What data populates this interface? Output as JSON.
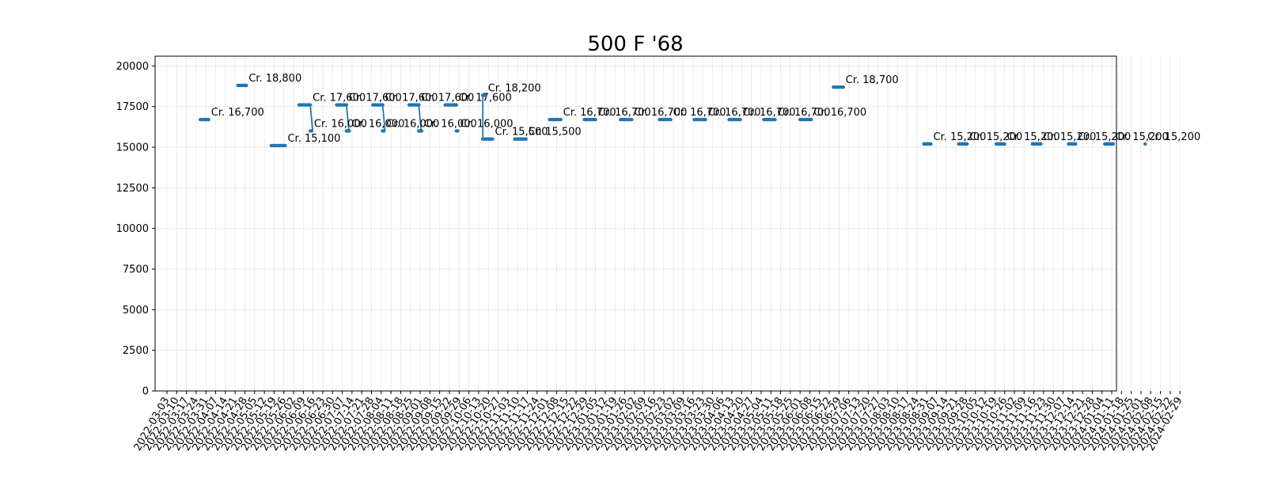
{
  "chart_data": {
    "type": "line",
    "title": "500 F '68",
    "xlabel": "",
    "ylabel": "",
    "ylim": [
      0,
      20600
    ],
    "yticks": [
      0,
      2500,
      5000,
      7500,
      10000,
      12500,
      15000,
      17500,
      20000
    ],
    "grid": true,
    "legend": "none",
    "color": "#1f77b4",
    "x_tick_labels": [
      "2022-03-03",
      "2022-03-10",
      "2022-03-17",
      "2022-03-24",
      "2022-03-31",
      "2022-04-07",
      "2022-04-14",
      "2022-04-21",
      "2022-04-28",
      "2022-05-05",
      "2022-05-12",
      "2022-05-19",
      "2022-05-26",
      "2022-06-02",
      "2022-06-09",
      "2022-06-16",
      "2022-06-23",
      "2022-06-30",
      "2022-07-07",
      "2022-07-14",
      "2022-07-21",
      "2022-07-28",
      "2022-08-04",
      "2022-08-11",
      "2022-08-18",
      "2022-08-25",
      "2022-09-01",
      "2022-09-08",
      "2022-09-15",
      "2022-09-22",
      "2022-09-29",
      "2022-10-06",
      "2022-10-13",
      "2022-10-20",
      "2022-10-27",
      "2022-11-03",
      "2022-11-10",
      "2022-11-17",
      "2022-11-24",
      "2022-12-01",
      "2022-12-08",
      "2022-12-15",
      "2022-12-22",
      "2022-12-29",
      "2023-01-05",
      "2023-01-12",
      "2023-01-19",
      "2023-01-26",
      "2023-02-02",
      "2023-02-09",
      "2023-02-16",
      "2023-02-23",
      "2023-03-02",
      "2023-03-09",
      "2023-03-16",
      "2023-03-23",
      "2023-03-30",
      "2023-04-06",
      "2023-04-13",
      "2023-04-20",
      "2023-04-27",
      "2023-05-04",
      "2023-05-11",
      "2023-05-18",
      "2023-05-25",
      "2023-06-01",
      "2023-06-08",
      "2023-06-15",
      "2023-06-22",
      "2023-06-29",
      "2023-07-06",
      "2023-07-13",
      "2023-07-20",
      "2023-07-27",
      "2023-08-03",
      "2023-08-10",
      "2023-08-17",
      "2023-08-24",
      "2023-08-31",
      "2023-09-07",
      "2023-09-14",
      "2023-09-21",
      "2023-09-28",
      "2023-10-05",
      "2023-10-12",
      "2023-10-19",
      "2023-10-26",
      "2023-11-02",
      "2023-11-09",
      "2023-11-16",
      "2023-11-23",
      "2023-11-30",
      "2023-12-07",
      "2023-12-14",
      "2023-12-21",
      "2023-12-28",
      "2024-01-04",
      "2024-01-11",
      "2024-01-18",
      "2024-01-25",
      "2024-02-01",
      "2024-02-08",
      "2024-02-15",
      "2024-02-22",
      "2024-02-29"
    ],
    "segments": [
      {
        "start": "2022-03-27",
        "end": "2022-04-02",
        "value": 16700,
        "label": "Cr. 16,700"
      },
      {
        "start": "2022-04-23",
        "end": "2022-04-29",
        "value": 18800,
        "label": "Cr. 18,800"
      },
      {
        "start": "2022-05-17",
        "end": "2022-05-27",
        "value": 15100,
        "label": "Cr. 15,100"
      },
      {
        "start": "2022-06-06",
        "end": "2022-06-14",
        "value": 17600,
        "label": "Cr. 17,600"
      },
      {
        "start": "2022-06-14",
        "end": "2022-06-15",
        "value": 16000,
        "label": "Cr. 16,000"
      },
      {
        "start": "2022-07-03",
        "end": "2022-07-10",
        "value": 17600,
        "label": "Cr. 17,600"
      },
      {
        "start": "2022-07-10",
        "end": "2022-07-12",
        "value": 16000,
        "label": "Cr. 16,000"
      },
      {
        "start": "2022-07-29",
        "end": "2022-08-05",
        "value": 17600,
        "label": "Cr. 17,600"
      },
      {
        "start": "2022-08-05",
        "end": "2022-08-06",
        "value": 16000,
        "label": "Cr. 16,000"
      },
      {
        "start": "2022-08-24",
        "end": "2022-08-31",
        "value": 17600,
        "label": "Cr. 17,600"
      },
      {
        "start": "2022-08-31",
        "end": "2022-09-02",
        "value": 16000,
        "label": "Cr. 16,000"
      },
      {
        "start": "2022-09-19",
        "end": "2022-09-27",
        "value": 17600,
        "label": "Cr. 17,600"
      },
      {
        "start": "2022-09-27",
        "end": "2022-09-28",
        "value": 16000,
        "label": "Cr. 16,000"
      },
      {
        "start": "2022-10-16",
        "end": "2022-10-18",
        "value": 18200,
        "label": "Cr. 18,200"
      },
      {
        "start": "2022-10-16",
        "end": "2022-10-23",
        "value": 15500,
        "label": "Cr. 15,500"
      },
      {
        "start": "2022-11-08",
        "end": "2022-11-16",
        "value": 15500,
        "label": "Cr. 15,500"
      },
      {
        "start": "2022-12-03",
        "end": "2022-12-11",
        "value": 16700,
        "label": "Cr. 16,700"
      },
      {
        "start": "2022-12-28",
        "end": "2023-01-05",
        "value": 16700,
        "label": "Cr. 16,700"
      },
      {
        "start": "2023-01-23",
        "end": "2023-01-31",
        "value": 16700,
        "label": "Cr. 16,700"
      },
      {
        "start": "2023-02-20",
        "end": "2023-02-28",
        "value": 16700,
        "label": "Cr. 16,700"
      },
      {
        "start": "2023-03-17",
        "end": "2023-03-25",
        "value": 16700,
        "label": "Cr. 16,700"
      },
      {
        "start": "2023-04-11",
        "end": "2023-04-19",
        "value": 16700,
        "label": "Cr. 16,700"
      },
      {
        "start": "2023-05-06",
        "end": "2023-05-14",
        "value": 16700,
        "label": "Cr. 16,700"
      },
      {
        "start": "2023-06-01",
        "end": "2023-06-09",
        "value": 16700,
        "label": "Cr. 16,700"
      },
      {
        "start": "2023-08-29",
        "end": "2023-09-03",
        "value": 15200,
        "label": "Cr. 15,200"
      },
      {
        "start": "2023-09-23",
        "end": "2023-09-29",
        "value": 15200,
        "label": "Cr. 15,200"
      },
      {
        "start": "2023-10-20",
        "end": "2023-10-26",
        "value": 15200,
        "label": "Cr. 15,200"
      },
      {
        "start": "2023-11-15",
        "end": "2023-11-21",
        "value": 15200,
        "label": "Cr. 15,200"
      },
      {
        "start": "2023-12-11",
        "end": "2023-12-16",
        "value": 15200,
        "label": "Cr. 15,200"
      },
      {
        "start": "2024-01-06",
        "end": "2024-01-12",
        "value": 15200,
        "label": "Cr. 15,200"
      },
      {
        "start": "2024-02-04",
        "end": "2024-02-04",
        "value": 15200,
        "label": "Cr. 15,200"
      },
      {
        "start": "2023-06-25",
        "end": "2023-07-02",
        "value": 18700,
        "label": "Cr. 18,700"
      }
    ],
    "connectors": [
      {
        "x": "2022-06-14",
        "from": 17600,
        "to": 16000
      },
      {
        "x": "2022-07-10",
        "from": 17600,
        "to": 16000
      },
      {
        "x": "2022-08-05",
        "from": 17600,
        "to": 16000
      },
      {
        "x": "2022-08-31",
        "from": 17600,
        "to": 16000
      },
      {
        "x": "2022-10-16",
        "from": 15500,
        "to": 18200
      }
    ]
  }
}
